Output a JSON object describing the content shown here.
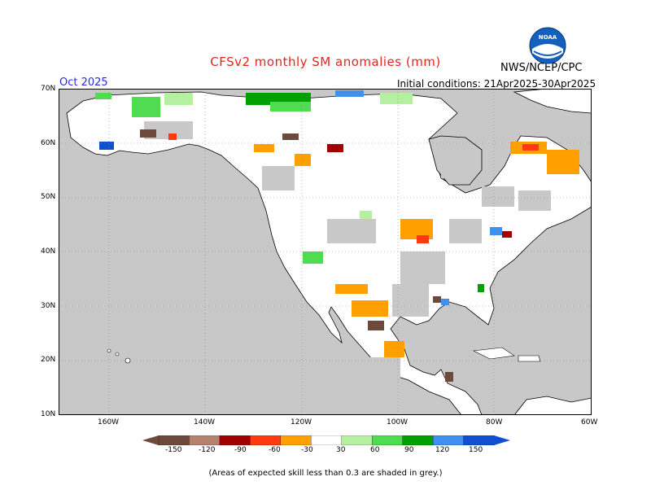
{
  "header": {
    "title": "CFSv2 monthly SM anomalies (mm)",
    "month": "Oct 2025",
    "initial_conditions": "Initial conditions: 21Apr2025-30Apr2025",
    "agency": "NWS/NCEP/CPC",
    "logo_text": "NOAA"
  },
  "axes": {
    "lat_labels": [
      "70N",
      "60N",
      "50N",
      "40N",
      "30N",
      "20N",
      "10N"
    ],
    "lon_labels": [
      "160W",
      "140W",
      "120W",
      "100W",
      "80W",
      "60W"
    ]
  },
  "legend": {
    "labels": [
      "-150",
      "-120",
      "-90",
      "-60",
      "-30",
      "30",
      "60",
      "90",
      "120",
      "150"
    ],
    "colors": [
      "#6e4a3c",
      "#b4826e",
      "#a00000",
      "#ff3a10",
      "#ffa000",
      "#ffffff",
      "#b4f0a0",
      "#50dc50",
      "#00a000",
      "#4090f0",
      "#1050d0"
    ]
  },
  "footnote": "(Areas of expected skill less than 0.3 are shaded in grey.)",
  "colors": {
    "ocean_grey": "#c8c8c8",
    "land_white": "#ffffff",
    "title_red": "#e8231c",
    "month_blue": "#2a2adf"
  }
}
